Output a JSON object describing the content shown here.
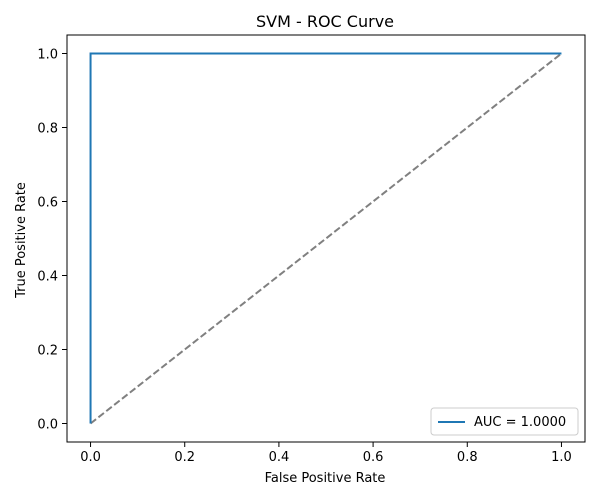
{
  "chart_data": {
    "type": "line",
    "title": "SVM - ROC Curve",
    "xlabel": "False Positive Rate",
    "ylabel": "True Positive Rate",
    "xlim": [
      -0.05,
      1.05
    ],
    "ylim": [
      -0.05,
      1.05
    ],
    "x_ticks": [
      "0.0",
      "0.2",
      "0.4",
      "0.6",
      "0.8",
      "1.0"
    ],
    "y_ticks": [
      "0.0",
      "0.2",
      "0.4",
      "0.6",
      "0.8",
      "1.0"
    ],
    "grid": false,
    "legend_position": "lower-right",
    "series": [
      {
        "name": "AUC = 1.0000",
        "color": "#1f77b4",
        "line_style": "solid",
        "x": [
          0.0,
          0.0,
          1.0
        ],
        "y": [
          0.0,
          1.0,
          1.0
        ]
      },
      {
        "color": "#808080",
        "line_style": "dashed",
        "x": [
          0.0,
          1.0
        ],
        "y": [
          0.0,
          1.0
        ]
      }
    ]
  }
}
